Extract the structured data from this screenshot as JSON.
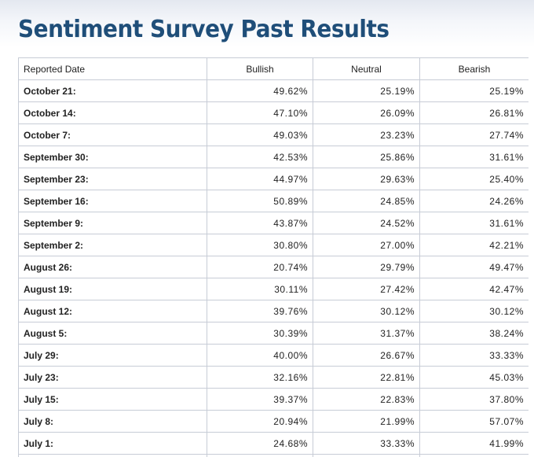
{
  "page": {
    "title": "Sentiment Survey Past Results"
  },
  "table": {
    "headers": [
      "Reported Date",
      "Bullish",
      "Neutral",
      "Bearish"
    ],
    "rows": [
      [
        "October 21:",
        "49.62%",
        "25.19%",
        "25.19%"
      ],
      [
        "October 14:",
        "47.10%",
        "26.09%",
        "26.81%"
      ],
      [
        "October 7:",
        "49.03%",
        "23.23%",
        "27.74%"
      ],
      [
        "September 30:",
        "42.53%",
        "25.86%",
        "31.61%"
      ],
      [
        "September 23:",
        "44.97%",
        "29.63%",
        "25.40%"
      ],
      [
        "September 16:",
        "50.89%",
        "24.85%",
        "24.26%"
      ],
      [
        "September 9:",
        "43.87%",
        "24.52%",
        "31.61%"
      ],
      [
        "September 2:",
        "30.80%",
        "27.00%",
        "42.21%"
      ],
      [
        "August 26:",
        "20.74%",
        "29.79%",
        "49.47%"
      ],
      [
        "August 19:",
        "30.11%",
        "27.42%",
        "42.47%"
      ],
      [
        "August 12:",
        "39.76%",
        "30.12%",
        "30.12%"
      ],
      [
        "August 5:",
        "30.39%",
        "31.37%",
        "38.24%"
      ],
      [
        "July 29:",
        "40.00%",
        "26.67%",
        "33.33%"
      ],
      [
        "July 23:",
        "32.16%",
        "22.81%",
        "45.03%"
      ],
      [
        "July 15:",
        "39.37%",
        "22.83%",
        "37.80%"
      ],
      [
        "July 8:",
        "20.94%",
        "21.99%",
        "57.07%"
      ],
      [
        "July 1:",
        "24.68%",
        "33.33%",
        "41.99%"
      ],
      [
        "",
        "",
        "",
        ""
      ]
    ]
  }
}
